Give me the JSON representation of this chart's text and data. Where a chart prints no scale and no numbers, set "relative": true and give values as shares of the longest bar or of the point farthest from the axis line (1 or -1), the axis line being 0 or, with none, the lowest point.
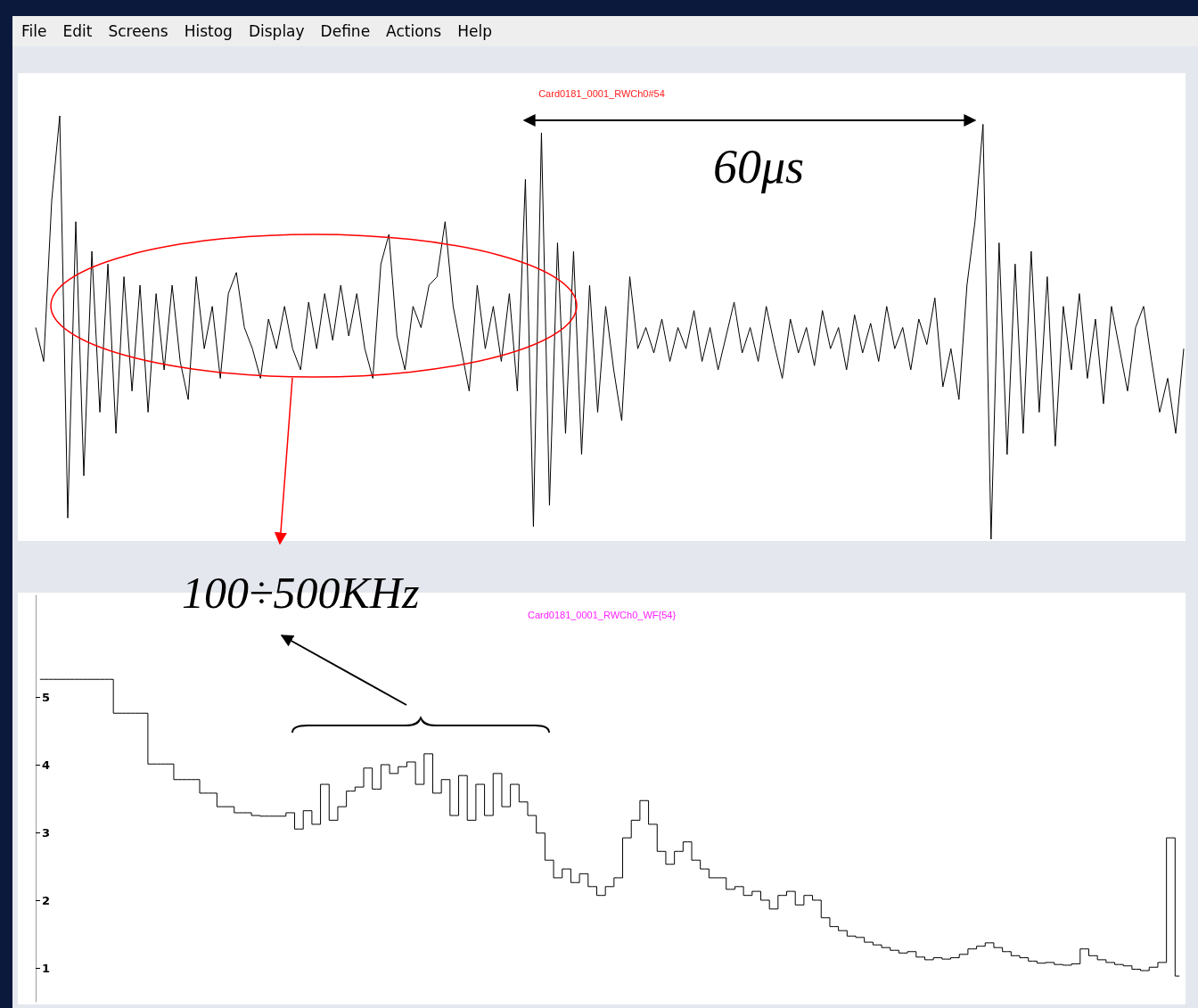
{
  "chart_data": [
    {
      "type": "other",
      "annotations": [
        "File",
        "Edit",
        "Screens",
        "Histog",
        "Display",
        "Define",
        "Actions",
        "Help"
      ]
    },
    {
      "type": "line",
      "title": "Card0181_0001_RWCh0#54",
      "relative": true,
      "tick_labels": false,
      "marker": "none",
      "annotations": [
        "60μs"
      ],
      "categories": [
        null,
        null,
        null,
        null,
        null,
        null,
        null,
        null,
        null,
        null,
        null,
        null,
        null,
        null,
        null,
        null,
        null,
        null,
        null,
        null,
        null,
        null,
        null,
        null,
        null,
        null,
        null,
        null,
        null,
        null,
        null,
        null,
        null,
        null,
        null,
        null,
        null,
        null,
        null,
        null,
        null,
        null,
        null,
        null,
        null,
        null,
        null,
        null,
        null,
        null,
        null,
        null,
        null,
        null,
        null,
        null,
        null,
        null,
        null,
        null,
        null,
        null,
        null,
        null,
        null,
        null,
        null,
        null,
        null,
        null,
        null,
        null,
        null,
        null,
        null,
        null,
        null,
        null,
        null,
        null,
        null,
        null,
        null,
        null,
        null,
        null,
        null,
        null,
        null,
        null,
        null,
        null,
        null,
        null,
        null,
        null,
        null,
        null,
        null,
        null,
        null,
        null,
        null,
        null,
        null,
        null,
        null,
        null,
        null,
        null,
        null,
        null,
        null,
        null,
        null,
        null,
        null,
        null,
        null,
        null,
        null,
        null,
        null,
        null,
        null,
        null,
        null,
        null,
        null,
        null,
        null,
        null,
        null,
        null,
        null,
        null,
        null,
        null,
        null,
        null,
        null,
        null,
        null,
        null
      ],
      "color": "#000000",
      "values": [
        0.5,
        0.42,
        0.8,
        1.0,
        0.05,
        0.75,
        0.15,
        0.68,
        0.3,
        0.65,
        0.25,
        0.62,
        0.35,
        0.6,
        0.3,
        0.58,
        0.4,
        0.6,
        0.42,
        0.33,
        0.62,
        0.45,
        0.55,
        0.38,
        0.58,
        0.63,
        0.5,
        0.45,
        0.38,
        0.52,
        0.45,
        0.55,
        0.45,
        0.4,
        0.56,
        0.45,
        0.58,
        0.47,
        0.6,
        0.48,
        0.58,
        0.45,
        0.38,
        0.65,
        0.72,
        0.48,
        0.4,
        0.55,
        0.5,
        0.6,
        0.62,
        0.75,
        0.55,
        0.45,
        0.35,
        0.6,
        0.45,
        0.55,
        0.42,
        0.58,
        0.35,
        0.85,
        0.03,
        0.96,
        0.08,
        0.7,
        0.25,
        0.68,
        0.2,
        0.6,
        0.3,
        0.55,
        0.4,
        0.28,
        0.62,
        0.45,
        0.5,
        0.44,
        0.52,
        0.42,
        0.5,
        0.45,
        0.54,
        0.42,
        0.5,
        0.4,
        0.48,
        0.56,
        0.44,
        0.5,
        0.42,
        0.55,
        0.46,
        0.38,
        0.52,
        0.44,
        0.5,
        0.41,
        0.54,
        0.45,
        0.5,
        0.4,
        0.53,
        0.44,
        0.51,
        0.42,
        0.55,
        0.45,
        0.5,
        0.4,
        0.52,
        0.46,
        0.57,
        0.36,
        0.45,
        0.33,
        0.6,
        0.75,
        0.98,
        0.0,
        0.7,
        0.2,
        0.65,
        0.25,
        0.68,
        0.3,
        0.62,
        0.22,
        0.55,
        0.4,
        0.58,
        0.38,
        0.52,
        0.32,
        0.55,
        0.45,
        0.35,
        0.5,
        0.55,
        0.42,
        0.3,
        0.38,
        0.25,
        0.45
      ]
    },
    {
      "type": "step",
      "title": "Card0181_0001_RWCh0_WF{54}",
      "tick_labels": "y",
      "marker": "none",
      "annotations": [
        "100÷500KHz"
      ],
      "ylim": [
        0.5,
        6.5
      ],
      "yticks": [
        1,
        2,
        3,
        4,
        5
      ],
      "categories": [
        null,
        null,
        null,
        null,
        null,
        null,
        null,
        null,
        null,
        null,
        null,
        null,
        null,
        null,
        null,
        null,
        null,
        null,
        null,
        null,
        null,
        null,
        null,
        null,
        null,
        null,
        null,
        null,
        null,
        null,
        null,
        null,
        null,
        null,
        null,
        null,
        null,
        null,
        null,
        null,
        null,
        null,
        null,
        null,
        null,
        null,
        null,
        null,
        null,
        null,
        null,
        null,
        null,
        null,
        null,
        null,
        null,
        null,
        null,
        null,
        null,
        null,
        null,
        null,
        null,
        null,
        null,
        null,
        null,
        null,
        null,
        null,
        null,
        null,
        null,
        null,
        null,
        null,
        null,
        null,
        null,
        null,
        null,
        null,
        null,
        null,
        null,
        null,
        null,
        null,
        null,
        null,
        null,
        null,
        null,
        null,
        null,
        null,
        null,
        null,
        null,
        null,
        null,
        null,
        null,
        null,
        null,
        null,
        null,
        null,
        null,
        null,
        null,
        null,
        null,
        null,
        null,
        null,
        null,
        null,
        null,
        null,
        null,
        null,
        null,
        null,
        null,
        null,
        null,
        null,
        null,
        null,
        null
      ],
      "color": "#000000",
      "values": [
        5.26,
        5.26,
        5.26,
        5.26,
        5.26,
        5.26,
        5.26,
        5.26,
        5.26,
        4.76,
        4.76,
        4.76,
        4.76,
        4.01,
        4.01,
        4.01,
        3.78,
        3.78,
        3.78,
        3.58,
        3.58,
        3.38,
        3.38,
        3.29,
        3.29,
        3.25,
        3.24,
        3.24,
        3.24,
        3.29,
        3.05,
        3.32,
        3.12,
        3.71,
        3.18,
        3.38,
        3.61,
        3.67,
        3.95,
        3.64,
        4.0,
        3.87,
        3.97,
        4.04,
        3.71,
        4.16,
        3.58,
        3.78,
        3.25,
        3.84,
        3.18,
        3.71,
        3.25,
        3.87,
        3.38,
        3.71,
        3.45,
        3.25,
        2.99,
        2.59,
        2.33,
        2.46,
        2.26,
        2.39,
        2.2,
        2.07,
        2.2,
        2.33,
        2.92,
        3.18,
        3.47,
        3.12,
        2.72,
        2.53,
        2.72,
        2.86,
        2.59,
        2.46,
        2.33,
        2.33,
        2.16,
        2.2,
        2.07,
        2.13,
        2.0,
        1.87,
        2.07,
        2.13,
        1.93,
        2.07,
        2.0,
        1.74,
        1.61,
        1.55,
        1.47,
        1.45,
        1.38,
        1.34,
        1.3,
        1.26,
        1.22,
        1.24,
        1.16,
        1.12,
        1.15,
        1.13,
        1.15,
        1.2,
        1.28,
        1.32,
        1.37,
        1.3,
        1.24,
        1.18,
        1.15,
        1.1,
        1.07,
        1.08,
        1.05,
        1.04,
        1.06,
        1.28,
        1.18,
        1.12,
        1.08,
        1.05,
        1.03,
        0.98,
        0.96,
        1.01,
        1.08,
        2.92,
        0.88
      ]
    }
  ]
}
